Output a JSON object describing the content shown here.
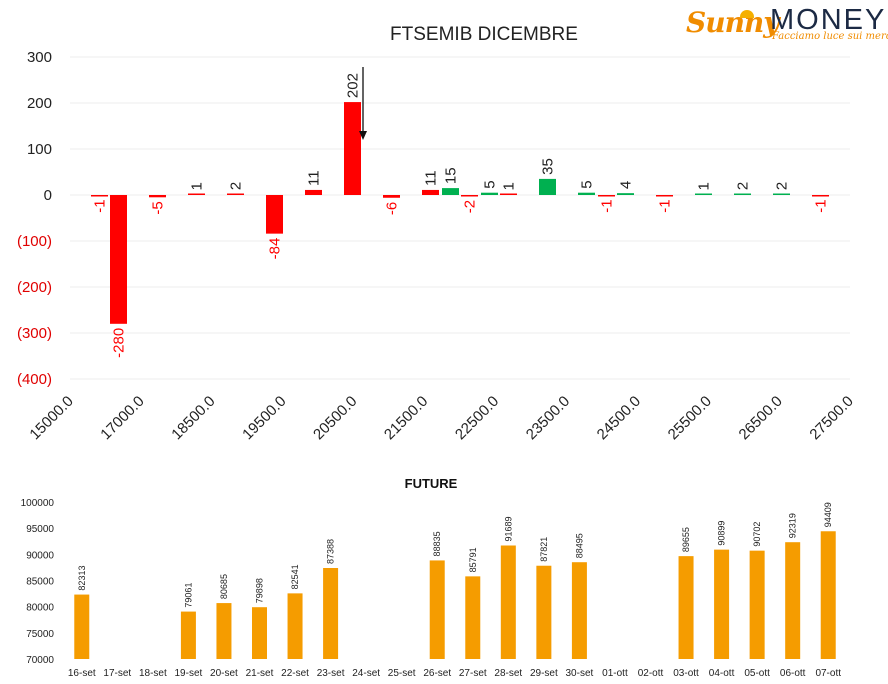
{
  "logo": {
    "word1": "Sunny",
    "word2": "MONEY",
    "tagline": "Facciamo luce sui mercati"
  },
  "colors": {
    "positive": "#00b050",
    "negative": "#ff0000",
    "future_bar": "#f59c00",
    "text": "#222222",
    "neg_axis": "#e00000"
  },
  "chart_data": [
    {
      "type": "bar",
      "title": "FTSEMIB DICEMBRE",
      "x_tick_labels": [
        "15000.0",
        "17000.0",
        "18500.0",
        "19500.0",
        "20500.0",
        "21500.0",
        "22500.0",
        "23500.0",
        "24500.0",
        "25500.0",
        "26500.0",
        "27500.0"
      ],
      "y_tick_labels": [
        "300",
        "200",
        "100",
        "0",
        "(100)",
        "(200)",
        "(300)",
        "(400)"
      ],
      "ylim": [
        -400,
        300
      ],
      "grid": true,
      "annotation": "arrow pointing down between 20500 and 21500",
      "groups": [
        [
          null,
          -1
        ],
        [
          -280,
          null
        ],
        [
          -5,
          null
        ],
        [
          1,
          null
        ],
        [
          2,
          null
        ],
        [
          -84,
          null
        ],
        [
          11,
          null
        ],
        [
          202,
          null
        ],
        [
          -6,
          null
        ],
        [
          11,
          15
        ],
        [
          -2,
          5
        ],
        [
          1,
          null
        ],
        [
          35,
          null
        ],
        [
          5,
          -1
        ],
        [
          4,
          null
        ],
        [
          -1,
          null
        ],
        [
          1,
          null
        ],
        [
          2,
          null
        ],
        [
          2,
          null
        ],
        [
          -1,
          null
        ]
      ],
      "bar_colors": [
        [
          null,
          "neg"
        ],
        [
          "neg",
          null
        ],
        [
          "neg",
          null
        ],
        [
          "neg",
          null
        ],
        [
          "neg",
          null
        ],
        [
          "neg",
          null
        ],
        [
          "neg",
          null
        ],
        [
          "neg",
          null
        ],
        [
          "neg",
          null
        ],
        [
          "neg",
          "pos"
        ],
        [
          "neg",
          "pos"
        ],
        [
          "neg",
          null
        ],
        [
          "pos",
          null
        ],
        [
          "pos",
          "neg"
        ],
        [
          "pos",
          null
        ],
        [
          "neg",
          null
        ],
        [
          "pos",
          null
        ],
        [
          "pos",
          null
        ],
        [
          "pos",
          null
        ],
        [
          "neg",
          null
        ]
      ]
    },
    {
      "type": "bar",
      "title": "FUTURE",
      "categories": [
        "16-set",
        "17-set",
        "18-set",
        "19-set",
        "20-set",
        "21-set",
        "22-set",
        "23-set",
        "24-set",
        "25-set",
        "26-set",
        "27-set",
        "28-set",
        "29-set",
        "30-set",
        "01-ott",
        "02-ott",
        "03-ott",
        "04-ott",
        "05-ott",
        "06-ott",
        "07-ott"
      ],
      "values": [
        82313,
        null,
        null,
        79061,
        80685,
        79898,
        82541,
        87388,
        null,
        null,
        88835,
        85791,
        91689,
        87821,
        88495,
        null,
        null,
        89655,
        90899,
        90702,
        92319,
        94409
      ],
      "ylim": [
        70000,
        100000
      ],
      "y_tick_labels": [
        "100000",
        "95000",
        "90000",
        "85000",
        "80000",
        "75000",
        "70000"
      ]
    }
  ]
}
